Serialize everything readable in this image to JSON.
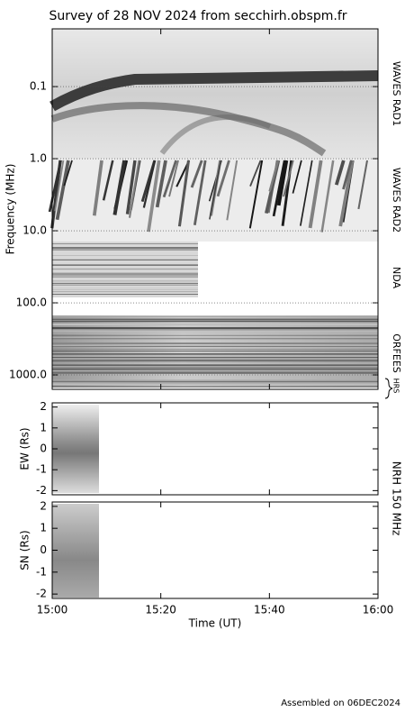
{
  "chart_data": {
    "type": "spectrogram",
    "title": "Survey of 28 NOV 2024 from secchirh.obspm.fr",
    "xlabel": "Time (UT)",
    "xlim": [
      "15:00",
      "16:00"
    ],
    "xticks": [
      "15:00",
      "15:20",
      "15:40",
      "16:00"
    ],
    "panels": [
      {
        "ylabel": "Frequency (MHz)",
        "log": true,
        "ylim": [
          0.0158,
          1585
        ],
        "yticks": [
          0.1,
          {
            "value": 1,
            "label": "1.0"
          },
          {
            "value": 10,
            "label": "10.0"
          },
          {
            "value": 100,
            "label": "100.0"
          },
          {
            "value": 1000,
            "label": "1000.0"
          }
        ],
        "bands": [
          "WAVES RAD1",
          "WAVES RAD2",
          "NDA",
          "ORFEES",
          "HRS"
        ]
      },
      {
        "ylabel": "EW (Rs)",
        "ylim": [
          -2.2,
          2.2
        ],
        "yticks": [
          -2,
          -1,
          0,
          1,
          2
        ]
      },
      {
        "ylabel": "SN (Rs)",
        "ylim": [
          -2.2,
          2.2
        ],
        "yticks": [
          -2,
          -1,
          0,
          1,
          2
        ]
      }
    ],
    "instrument": "NRH 150 MHz",
    "footer": "Assembled on 06DEC2024"
  }
}
